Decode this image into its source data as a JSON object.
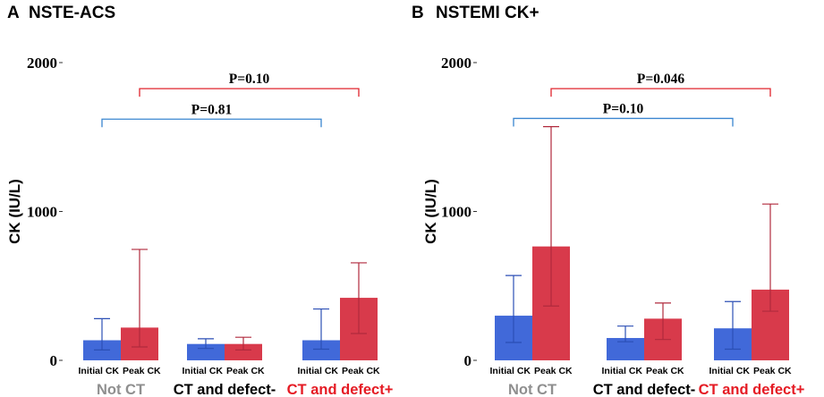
{
  "colors": {
    "initial": "#4169d9",
    "peak": "#d83a4b",
    "initial_err": "#2b4fb5",
    "peak_err": "#b02a3d",
    "bracket_blue": "#3a86d0",
    "bracket_red": "#e0242d",
    "group_grey": "#8f8f8f",
    "group_black": "#000000",
    "group_red": "#e51b24"
  },
  "chart_data": [
    {
      "type": "bar",
      "panel_letter": "A",
      "title": "NSTE-ACS",
      "ylabel": "CK (IU/L)",
      "ylim": [
        0,
        2000
      ],
      "yticks": [
        "0",
        "1000",
        "2000"
      ],
      "bar_labels": [
        "Initial CK",
        "Peak CK"
      ],
      "groups": [
        {
          "name": "Not CT",
          "color_key": "group_grey"
        },
        {
          "name": "CT and defect-",
          "color_key": "group_black"
        },
        {
          "name": "CT and defect+",
          "color_key": "group_red"
        }
      ],
      "series": [
        {
          "name": "Initial CK",
          "values": [
            135,
            110,
            135
          ],
          "err_low": [
            70,
            80,
            75
          ],
          "err_high": [
            280,
            145,
            345
          ]
        },
        {
          "name": "Peak CK",
          "values": [
            220,
            110,
            420
          ],
          "err_low": [
            90,
            70,
            180
          ],
          "err_high": [
            745,
            155,
            655
          ]
        }
      ],
      "brackets": [
        {
          "label": "P=0.81",
          "from": 0,
          "to": 2,
          "series": "Initial CK",
          "color_key": "bracket_blue",
          "level": 1620
        },
        {
          "label": "P=0.10",
          "from": 0,
          "to": 2,
          "series": "Peak CK",
          "color_key": "bracket_red",
          "level": 1825
        }
      ]
    },
    {
      "type": "bar",
      "panel_letter": "B",
      "title": "NSTEMI CK+",
      "ylabel": "CK (IU/L)",
      "ylim": [
        0,
        2000
      ],
      "yticks": [
        "0",
        "1000",
        "2000"
      ],
      "bar_labels": [
        "Initial CK",
        "Peak CK"
      ],
      "groups": [
        {
          "name": "Not CT",
          "color_key": "group_grey"
        },
        {
          "name": "CT and defect-",
          "color_key": "group_black"
        },
        {
          "name": "CT and defect+",
          "color_key": "group_red"
        }
      ],
      "series": [
        {
          "name": "Initial CK",
          "values": [
            300,
            150,
            215
          ],
          "err_low": [
            120,
            125,
            75
          ],
          "err_high": [
            570,
            230,
            395
          ]
        },
        {
          "name": "Peak CK",
          "values": [
            765,
            280,
            475
          ],
          "err_low": [
            365,
            140,
            330
          ],
          "err_high": [
            1570,
            385,
            1050
          ]
        }
      ],
      "brackets": [
        {
          "label": "P=0.10",
          "from": 0,
          "to": 2,
          "series": "Initial CK",
          "color_key": "bracket_blue",
          "level": 1625
        },
        {
          "label": "P=0.046",
          "from": 0,
          "to": 2,
          "series": "Peak CK",
          "color_key": "bracket_red",
          "level": 1825
        }
      ]
    }
  ]
}
